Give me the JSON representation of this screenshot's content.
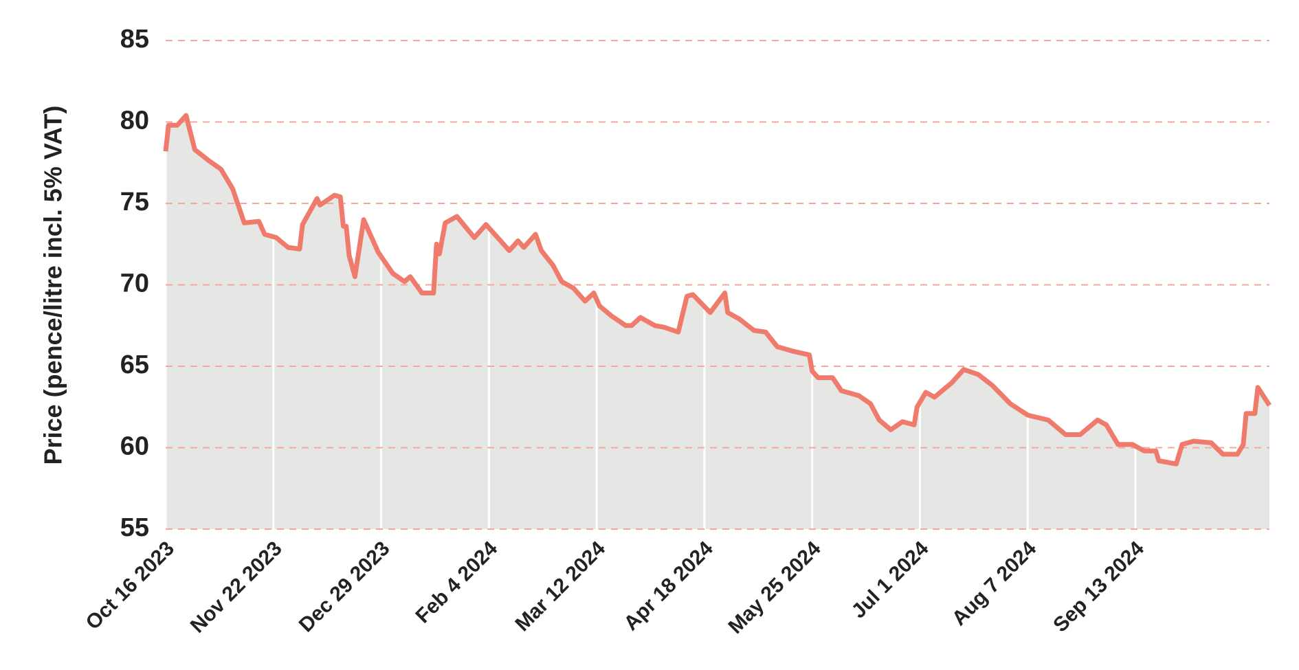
{
  "chart_data": {
    "type": "line",
    "y_label": "Price (pence/litre incl. 5% VAT)",
    "x": [
      "2023-10-16",
      "2023-10-17",
      "2023-10-20",
      "2023-10-23",
      "2023-10-26",
      "2023-10-31",
      "2023-11-04",
      "2023-11-08",
      "2023-11-12",
      "2023-11-17",
      "2023-11-19",
      "2023-11-23",
      "2023-11-27",
      "2023-12-01",
      "2023-12-02",
      "2023-12-07",
      "2023-12-08",
      "2023-12-13",
      "2023-12-15",
      "2023-12-16",
      "2023-12-17",
      "2023-12-18",
      "2023-12-20",
      "2023-12-23",
      "2023-12-28",
      "2024-01-02",
      "2024-01-06",
      "2024-01-08",
      "2024-01-12",
      "2024-01-16",
      "2024-01-17",
      "2024-01-18",
      "2024-01-20",
      "2024-01-24",
      "2024-01-30",
      "2024-02-03",
      "2024-02-07",
      "2024-02-11",
      "2024-02-14",
      "2024-02-16",
      "2024-02-20",
      "2024-02-22",
      "2024-02-26",
      "2024-02-29",
      "2024-03-04",
      "2024-03-08",
      "2024-03-11",
      "2024-03-13",
      "2024-03-17",
      "2024-03-22",
      "2024-03-24",
      "2024-03-27",
      "2024-04-01",
      "2024-04-04",
      "2024-04-09",
      "2024-04-12",
      "2024-04-14",
      "2024-04-20",
      "2024-04-25",
      "2024-04-26",
      "2024-04-30",
      "2024-05-05",
      "2024-05-09",
      "2024-05-13",
      "2024-05-19",
      "2024-05-24",
      "2024-05-25",
      "2024-05-27",
      "2024-06-01",
      "2024-06-04",
      "2024-06-10",
      "2024-06-14",
      "2024-06-17",
      "2024-06-21",
      "2024-06-25",
      "2024-06-29",
      "2024-06-30",
      "2024-07-03",
      "2024-07-06",
      "2024-07-12",
      "2024-07-16",
      "2024-07-21",
      "2024-07-26",
      "2024-08-01",
      "2024-08-07",
      "2024-08-14",
      "2024-08-20",
      "2024-08-25",
      "2024-08-31",
      "2024-09-03",
      "2024-09-07",
      "2024-09-12",
      "2024-09-16",
      "2024-09-20",
      "2024-09-21",
      "2024-09-27",
      "2024-09-29",
      "2024-10-03",
      "2024-10-09",
      "2024-10-13",
      "2024-10-18",
      "2024-10-20",
      "2024-10-21",
      "2024-10-24",
      "2024-10-25",
      "2024-10-29"
    ],
    "series": [
      {
        "name": "Price",
        "color": "#ef7b6c",
        "fill": "#e6e6e4",
        "values": [
          78.2,
          79.8,
          79.8,
          80.4,
          78.3,
          77.6,
          77.1,
          75.9,
          73.8,
          73.9,
          73.1,
          72.9,
          72.3,
          72.2,
          73.7,
          75.3,
          74.9,
          75.5,
          75.4,
          73.6,
          73.6,
          71.8,
          70.5,
          74.0,
          72.0,
          70.7,
          70.2,
          70.5,
          69.5,
          69.5,
          72.5,
          71.9,
          73.8,
          74.2,
          72.9,
          73.7,
          72.9,
          72.1,
          72.7,
          72.3,
          73.1,
          72.1,
          71.2,
          70.2,
          69.8,
          69.0,
          69.5,
          68.7,
          68.1,
          67.5,
          67.5,
          68.0,
          67.5,
          67.4,
          67.1,
          69.3,
          69.4,
          68.3,
          69.5,
          68.3,
          67.9,
          67.2,
          67.1,
          66.2,
          65.9,
          65.7,
          64.7,
          64.3,
          64.3,
          63.5,
          63.2,
          62.7,
          61.7,
          61.1,
          61.6,
          61.4,
          62.5,
          63.4,
          63.1,
          64.0,
          64.8,
          64.5,
          63.8,
          62.7,
          62.0,
          61.7,
          60.8,
          60.8,
          61.7,
          61.4,
          60.2,
          60.2,
          59.8,
          59.8,
          59.2,
          59.0,
          60.2,
          60.4,
          60.3,
          59.6,
          59.6,
          60.2,
          62.1,
          62.1,
          63.7,
          62.6
        ]
      }
    ],
    "xlim": [
      "2023-10-16",
      "2024-10-29"
    ],
    "xticks": [
      {
        "value": "2023-10-16",
        "label": "Oct 16 2023"
      },
      {
        "value": "2023-11-22",
        "label": "Nov 22 2023"
      },
      {
        "value": "2023-12-29",
        "label": "Dec 29 2023"
      },
      {
        "value": "2024-02-04",
        "label": "Feb 4 2024"
      },
      {
        "value": "2024-03-12",
        "label": "Mar 12 2024"
      },
      {
        "value": "2024-04-18",
        "label": "Apr 18 2024"
      },
      {
        "value": "2024-05-25",
        "label": "May 25 2024"
      },
      {
        "value": "2024-07-01",
        "label": "Jul 1 2024"
      },
      {
        "value": "2024-08-07",
        "label": "Aug 7 2024"
      },
      {
        "value": "2024-09-13",
        "label": "Sep 13 2024"
      }
    ],
    "ylim": [
      55,
      85
    ],
    "yticks": [
      55,
      60,
      65,
      70,
      75,
      80,
      85
    ],
    "grid": true,
    "grid_color": "#f2a89c"
  }
}
